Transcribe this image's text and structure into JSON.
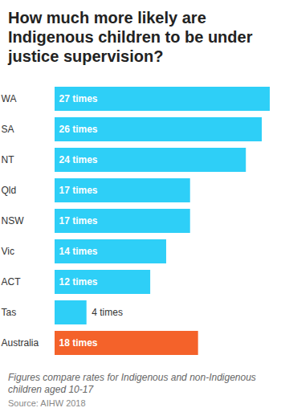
{
  "chart_data": {
    "type": "bar",
    "orientation": "horizontal",
    "title": "How much more likely are Indigenous children to be under justice supervision?",
    "caption": "Figures compare rates for Indigenous and non-Indigenous children aged 10-17",
    "source": "Source: AIHW 2018",
    "categories": [
      "WA",
      "SA",
      "NT",
      "Qld",
      "NSW",
      "Vic",
      "ACT",
      "Tas",
      "Australia"
    ],
    "values": [
      27,
      26,
      24,
      17,
      17,
      14,
      12,
      4,
      18
    ],
    "value_labels": [
      "27 times",
      "26 times",
      "24 times",
      "17 times",
      "17 times",
      "14 times",
      "12 times",
      "4 times",
      "18 times"
    ],
    "colors": [
      "#2ecff7",
      "#2ecff7",
      "#2ecff7",
      "#2ecff7",
      "#2ecff7",
      "#2ecff7",
      "#2ecff7",
      "#2ecff7",
      "#f4622a"
    ],
    "xlim": [
      0,
      27
    ],
    "data_labels": true,
    "tick_labels": "y",
    "grid": false
  }
}
